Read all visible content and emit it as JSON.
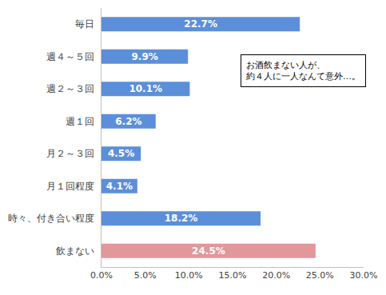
{
  "chart_data": {
    "type": "bar",
    "orientation": "horizontal",
    "categories": [
      "毎日",
      "週４～５回",
      "週２～３回",
      "週１回",
      "月２～３回",
      "月１回程度",
      "時々、付き合い程度",
      "飲まない"
    ],
    "values": [
      22.7,
      9.9,
      10.1,
      6.2,
      4.5,
      4.1,
      18.2,
      24.5
    ],
    "value_labels": [
      "22.7%",
      "9.9%",
      "10.1%",
      "6.2%",
      "4.5%",
      "4.1%",
      "18.2%",
      "24.5%"
    ],
    "colors": [
      "#5b8fd9",
      "#5b8fd9",
      "#5b8fd9",
      "#5b8fd9",
      "#5b8fd9",
      "#5b8fd9",
      "#5b8fd9",
      "#e2979b"
    ],
    "data_labels": true,
    "xlim": [
      0,
      30
    ],
    "xticks": [
      {
        "value": 0,
        "label": "0.0%"
      },
      {
        "value": 5,
        "label": "5.0%"
      },
      {
        "value": 10,
        "label": "10.0%"
      },
      {
        "value": 15,
        "label": "15.0%"
      },
      {
        "value": 20,
        "label": "20.0%"
      },
      {
        "value": 25,
        "label": "25.0%"
      },
      {
        "value": 30,
        "label": "30.0%"
      }
    ],
    "grid": false,
    "annotations": [
      "お酒飲まない人が、",
      "約４人に一人なんて意外…。"
    ]
  }
}
